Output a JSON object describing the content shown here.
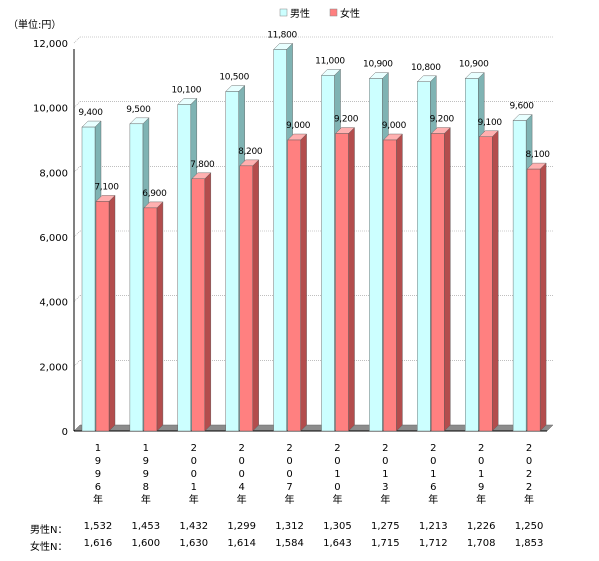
{
  "chart_data": {
    "type": "bar",
    "unit_label": "（単位:円）",
    "categories": [
      "1996年",
      "1998年",
      "2001年",
      "2004年",
      "2007年",
      "2010年",
      "2013年",
      "2016年",
      "2019年",
      "2022年"
    ],
    "series": [
      {
        "name": "男性",
        "color": "#ccffff",
        "values": [
          9400,
          9500,
          10100,
          10500,
          11800,
          11000,
          10900,
          10800,
          10900,
          9600
        ]
      },
      {
        "name": "女性",
        "color": "#ff8080",
        "values": [
          7100,
          6900,
          7800,
          8200,
          9000,
          9200,
          9000,
          9200,
          9100,
          8100
        ]
      }
    ],
    "data_labels": {
      "男性": [
        "9,400",
        "9,500",
        "10,100",
        "10,500",
        "11,800",
        "11,000",
        "10,900",
        "10,800",
        "10,900",
        "9,600"
      ],
      "女性": [
        "7,100",
        "6,900",
        "7,800",
        "8,200",
        "9,000",
        "9,200",
        "9,000",
        "9,200",
        "9,100",
        "8,100"
      ]
    },
    "ylim": [
      0,
      12000
    ],
    "yticks": [
      0,
      2000,
      4000,
      6000,
      8000,
      10000,
      12000
    ],
    "ytick_labels": [
      "0",
      "2,000",
      "4,000",
      "6,000",
      "8,000",
      "10,000",
      "12,000"
    ],
    "grid": true,
    "legend_position": "top-center",
    "sample_rows": [
      {
        "label": "男性N：",
        "values": [
          "1,532",
          "1,453",
          "1,432",
          "1,299",
          "1,312",
          "1,305",
          "1,275",
          "1,213",
          "1,226",
          "1,250"
        ]
      },
      {
        "label": "女性N：",
        "values": [
          "1,616",
          "1,600",
          "1,630",
          "1,614",
          "1,584",
          "1,643",
          "1,715",
          "1,712",
          "1,708",
          "1,853"
        ]
      }
    ]
  }
}
